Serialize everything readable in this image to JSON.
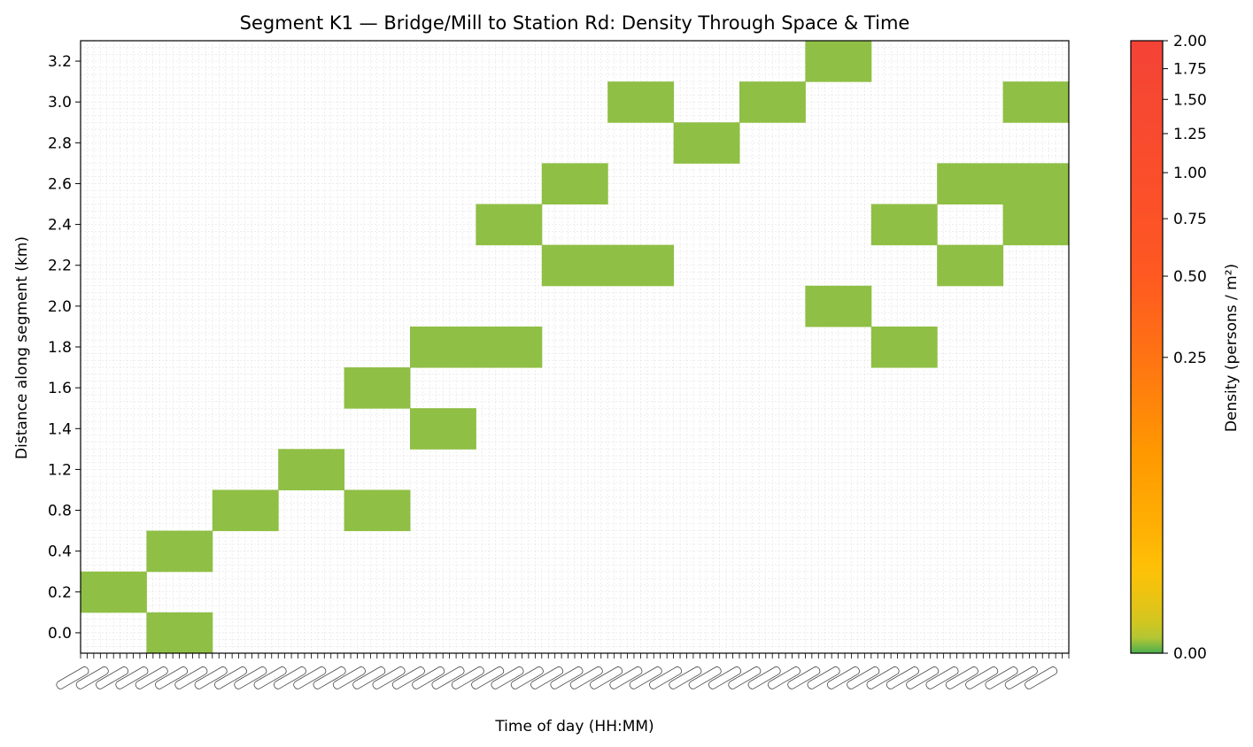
{
  "chart_data": {
    "type": "heatmap",
    "title": "Segment K1 — Bridge/Mill to Station Rd: Density Through Space & Time",
    "xlabel": "Time of day (HH:MM)",
    "ylabel": "Distance along segment (km)",
    "y_rows": [
      0.0,
      0.2,
      0.4,
      0.8,
      1.2,
      1.4,
      1.6,
      1.8,
      2.0,
      2.2,
      2.4,
      2.6,
      2.8,
      3.0,
      3.2
    ],
    "y_tick_labels": [
      "0.0",
      "0.2",
      "0.4",
      "0.8",
      "1.2",
      "1.4",
      "1.6",
      "1.8",
      "2.0",
      "2.2",
      "2.4",
      "2.6",
      "2.8",
      "3.0",
      "3.2"
    ],
    "time_columns": 15,
    "x_minor_ticks": 150,
    "x_tick_labels_note": "dense overlapping HH:MM labels (illegible)",
    "cells": [
      {
        "col": 0,
        "y": 0.2,
        "density": 0.1
      },
      {
        "col": 1,
        "y": 0.0,
        "density": 0.1
      },
      {
        "col": 1,
        "y": 0.4,
        "density": 0.1
      },
      {
        "col": 2,
        "y": 0.8,
        "density": 0.1
      },
      {
        "col": 3,
        "y": 1.2,
        "density": 0.1
      },
      {
        "col": 4,
        "y": 0.8,
        "density": 0.1
      },
      {
        "col": 4,
        "y": 1.6,
        "density": 0.1
      },
      {
        "col": 5,
        "y": 1.4,
        "density": 0.1
      },
      {
        "col": 5,
        "y": 1.8,
        "density": 0.1
      },
      {
        "col": 6,
        "y": 1.8,
        "density": 0.1
      },
      {
        "col": 6,
        "y": 2.4,
        "density": 0.1
      },
      {
        "col": 7,
        "y": 2.2,
        "density": 0.1
      },
      {
        "col": 7,
        "y": 2.6,
        "density": 0.1
      },
      {
        "col": 8,
        "y": 2.2,
        "density": 0.1
      },
      {
        "col": 8,
        "y": 3.0,
        "density": 0.1
      },
      {
        "col": 9,
        "y": 2.8,
        "density": 0.1
      },
      {
        "col": 10,
        "y": 3.0,
        "density": 0.1
      },
      {
        "col": 11,
        "y": 2.0,
        "density": 0.1
      },
      {
        "col": 11,
        "y": 3.2,
        "density": 0.1
      },
      {
        "col": 12,
        "y": 1.8,
        "density": 0.1
      },
      {
        "col": 12,
        "y": 2.4,
        "density": 0.1
      },
      {
        "col": 13,
        "y": 2.2,
        "density": 0.1
      },
      {
        "col": 13,
        "y": 2.6,
        "density": 0.1
      },
      {
        "col": 14,
        "y": 2.4,
        "density": 0.1
      },
      {
        "col": 14,
        "y": 2.6,
        "density": 0.1
      },
      {
        "col": 14,
        "y": 3.0,
        "density": 0.1
      }
    ],
    "cell_color": "#8fbf45",
    "colorbar": {
      "label": "Density (persons / m²)",
      "ticks": [
        0.0,
        0.25,
        0.5,
        0.75,
        1.0,
        1.25,
        1.5,
        1.75,
        2.0
      ],
      "tick_labels": [
        "0.00",
        "0.25",
        "0.50",
        "0.75",
        "1.00",
        "1.25",
        "1.50",
        "1.75",
        "2.00"
      ],
      "range": [
        0.0,
        2.0
      ],
      "scale": "nonlinear",
      "colors": [
        "#4caf50",
        "#8bc34a",
        "#c4c728",
        "#ffc107",
        "#ff9800",
        "#ff5722",
        "#f44336"
      ]
    }
  }
}
